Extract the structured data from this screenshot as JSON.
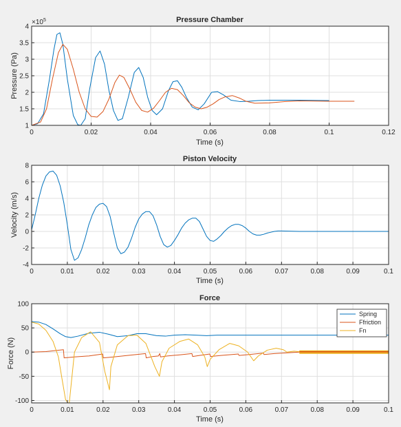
{
  "colors": {
    "blue": "#0072bd",
    "orange": "#d95319",
    "yellow": "#edb120"
  },
  "chart_data": [
    {
      "type": "line",
      "title": "Pressure Chamber",
      "xlabel": "Time (s)",
      "ylabel": "Pressure (Pa)",
      "exponent_label": "×10",
      "exponent_power": "5",
      "xlim": [
        0,
        0.12
      ],
      "ylim": [
        1,
        4
      ],
      "xticks": [
        "0",
        "0.02",
        "0.04",
        "0.06",
        "0.08",
        "0.1",
        "0.12"
      ],
      "yticks": [
        "1",
        "1.5",
        "2",
        "2.5",
        "3",
        "3.5",
        "4"
      ],
      "grid": true,
      "series": [
        {
          "color": "#0072bd",
          "x": [
            0,
            0.002,
            0.004,
            0.006,
            0.0075,
            0.0085,
            0.0095,
            0.0105,
            0.012,
            0.014,
            0.0155,
            0.0165,
            0.018,
            0.0195,
            0.0215,
            0.023,
            0.0245,
            0.026,
            0.0275,
            0.029,
            0.0305,
            0.0325,
            0.0345,
            0.036,
            0.0375,
            0.039,
            0.0405,
            0.042,
            0.044,
            0.046,
            0.0475,
            0.049,
            0.0505,
            0.052,
            0.054,
            0.056,
            0.058,
            0.0605,
            0.0625,
            0.0645,
            0.067,
            0.07,
            0.073,
            0.076,
            0.08,
            0.09,
            0.1
          ],
          "y": [
            1,
            1.05,
            1.35,
            2.4,
            3.3,
            3.75,
            3.8,
            3.45,
            2.4,
            1.3,
            1.02,
            1.0,
            1.2,
            2.1,
            3.05,
            3.25,
            2.85,
            2.05,
            1.45,
            1.15,
            1.2,
            1.85,
            2.6,
            2.75,
            2.45,
            1.85,
            1.45,
            1.32,
            1.5,
            2.05,
            2.32,
            2.35,
            2.15,
            1.85,
            1.55,
            1.47,
            1.65,
            2.0,
            2.02,
            1.92,
            1.76,
            1.72,
            1.73,
            1.75,
            1.76,
            1.76,
            1.75
          ]
        },
        {
          "color": "#d95319",
          "x": [
            0,
            0.003,
            0.005,
            0.007,
            0.009,
            0.0105,
            0.012,
            0.014,
            0.016,
            0.018,
            0.02,
            0.022,
            0.024,
            0.026,
            0.028,
            0.0295,
            0.031,
            0.033,
            0.035,
            0.037,
            0.039,
            0.041,
            0.043,
            0.045,
            0.047,
            0.049,
            0.051,
            0.053,
            0.055,
            0.057,
            0.059,
            0.061,
            0.063,
            0.065,
            0.0675,
            0.07,
            0.072,
            0.075,
            0.08,
            0.085,
            0.09,
            0.1,
            0.1085
          ],
          "y": [
            1,
            1.1,
            1.5,
            2.4,
            3.2,
            3.45,
            3.3,
            2.7,
            2.0,
            1.5,
            1.27,
            1.25,
            1.42,
            1.8,
            2.3,
            2.52,
            2.45,
            2.1,
            1.7,
            1.45,
            1.4,
            1.52,
            1.75,
            2.0,
            2.12,
            2.08,
            1.9,
            1.68,
            1.55,
            1.5,
            1.55,
            1.65,
            1.78,
            1.86,
            1.9,
            1.82,
            1.73,
            1.67,
            1.68,
            1.72,
            1.74,
            1.73,
            1.73
          ]
        }
      ]
    },
    {
      "type": "line",
      "title": "Piston Velocity",
      "xlabel": "Time (s)",
      "ylabel": "Velocity (m/s)",
      "xlim": [
        0,
        0.1
      ],
      "ylim": [
        -4,
        8
      ],
      "xticks": [
        "0",
        "0.01",
        "0.02",
        "0.03",
        "0.04",
        "0.05",
        "0.06",
        "0.07",
        "0.08",
        "0.09",
        "0.1"
      ],
      "yticks": [
        "-4",
        "-2",
        "0",
        "2",
        "4",
        "6",
        "8"
      ],
      "grid": true,
      "series": [
        {
          "color": "#0072bd",
          "x": [
            0,
            0.001,
            0.002,
            0.003,
            0.004,
            0.005,
            0.006,
            0.007,
            0.008,
            0.009,
            0.01,
            0.011,
            0.012,
            0.013,
            0.014,
            0.015,
            0.016,
            0.017,
            0.018,
            0.019,
            0.02,
            0.021,
            0.022,
            0.023,
            0.024,
            0.025,
            0.026,
            0.027,
            0.028,
            0.029,
            0.03,
            0.031,
            0.032,
            0.033,
            0.034,
            0.035,
            0.036,
            0.037,
            0.038,
            0.039,
            0.04,
            0.041,
            0.042,
            0.043,
            0.044,
            0.045,
            0.046,
            0.047,
            0.048,
            0.049,
            0.05,
            0.051,
            0.052,
            0.053,
            0.054,
            0.055,
            0.056,
            0.057,
            0.058,
            0.059,
            0.06,
            0.061,
            0.062,
            0.063,
            0.064,
            0.065,
            0.066,
            0.067,
            0.068,
            0.069,
            0.07,
            0.075,
            0.08,
            0.09,
            0.1
          ],
          "y": [
            0.2,
            2.0,
            4.0,
            5.6,
            6.7,
            7.2,
            7.3,
            6.8,
            5.5,
            3.5,
            0.8,
            -2.2,
            -3.5,
            -3.2,
            -2.2,
            -0.8,
            0.8,
            2.0,
            2.9,
            3.3,
            3.4,
            3.0,
            1.8,
            -0.2,
            -2.0,
            -2.7,
            -2.5,
            -1.9,
            -0.8,
            0.5,
            1.5,
            2.1,
            2.4,
            2.4,
            1.9,
            0.8,
            -0.6,
            -1.6,
            -1.9,
            -1.7,
            -1.1,
            -0.4,
            0.4,
            1.0,
            1.4,
            1.6,
            1.6,
            1.2,
            0.3,
            -0.6,
            -1.1,
            -1.2,
            -0.9,
            -0.5,
            0.0,
            0.4,
            0.7,
            0.85,
            0.85,
            0.7,
            0.4,
            0.0,
            -0.3,
            -0.45,
            -0.45,
            -0.35,
            -0.2,
            -0.1,
            0.0,
            0.05,
            0.05,
            0.0,
            0.0,
            0.0,
            0.0
          ]
        }
      ]
    },
    {
      "type": "line",
      "title": "Force",
      "xlabel": "Time (s)",
      "ylabel": "Force (N)",
      "xlim": [
        0,
        0.1
      ],
      "ylim": [
        -105,
        100
      ],
      "xticks": [
        "0",
        "0.01",
        "0.02",
        "0.03",
        "0.04",
        "0.05",
        "0.06",
        "0.07",
        "0.08",
        "0.09",
        "0.1"
      ],
      "yticks": [
        "-100",
        "-50",
        "0",
        "50",
        "100"
      ],
      "grid": true,
      "legend": {
        "position": "top-right",
        "entries": [
          "Spring",
          "Ffriction",
          "Fn"
        ]
      },
      "series": [
        {
          "name": "Spring",
          "color": "#0072bd",
          "x": [
            0,
            0.002,
            0.004,
            0.006,
            0.008,
            0.0095,
            0.011,
            0.013,
            0.016,
            0.019,
            0.0215,
            0.024,
            0.027,
            0.0295,
            0.032,
            0.035,
            0.0375,
            0.04,
            0.043,
            0.046,
            0.049,
            0.052,
            0.056,
            0.06,
            0.065,
            0.07,
            0.08,
            0.09,
            0.1
          ],
          "y": [
            63,
            62,
            57,
            48,
            38,
            32,
            30,
            33,
            39,
            41,
            37,
            32,
            34,
            38,
            38,
            34,
            33,
            35,
            36,
            35,
            34,
            35,
            35,
            35,
            35,
            35,
            35,
            35,
            35
          ]
        },
        {
          "name": "Ffriction",
          "color": "#d95319",
          "x": [
            0,
            0.004,
            0.0089,
            0.0091,
            0.012,
            0.016,
            0.0199,
            0.0201,
            0.023,
            0.028,
            0.0319,
            0.0321,
            0.034,
            0.0355,
            0.0359,
            0.0361,
            0.038,
            0.041,
            0.0449,
            0.0451,
            0.047,
            0.0499,
            0.0501,
            0.053,
            0.0579,
            0.0581,
            0.061,
            0.0649,
            0.0651,
            0.068,
            0.075,
            0.1
          ],
          "y": [
            0,
            1,
            5,
            -12,
            -10,
            -8,
            -4,
            -12,
            -10,
            -6,
            -3,
            -12,
            -9,
            -8,
            -3,
            -10,
            -8,
            -6,
            -3,
            -9,
            -7,
            -4,
            -9,
            -7,
            -4,
            -7,
            -5,
            -2,
            -5,
            -3,
            0,
            0
          ]
        },
        {
          "name": "Fn",
          "color": "#edb120",
          "x": [
            0,
            0.002,
            0.004,
            0.006,
            0.0075,
            0.0085,
            0.0095,
            0.0105,
            0.012,
            0.014,
            0.0165,
            0.019,
            0.0205,
            0.0218,
            0.0222,
            0.024,
            0.027,
            0.0295,
            0.032,
            0.0345,
            0.0358,
            0.0365,
            0.0385,
            0.0415,
            0.044,
            0.0465,
            0.0485,
            0.0492,
            0.05,
            0.0525,
            0.0555,
            0.058,
            0.0605,
            0.0622,
            0.0635,
            0.066,
            0.0685,
            0.0705,
            0.0715,
            0.0735,
            0.076,
            0.1
          ],
          "y": [
            62,
            58,
            45,
            22,
            -10,
            -55,
            -98,
            -108,
            0,
            30,
            42,
            20,
            -40,
            -78,
            -30,
            15,
            34,
            35,
            18,
            -30,
            -50,
            -20,
            8,
            22,
            27,
            15,
            -10,
            -30,
            -15,
            5,
            18,
            13,
            0,
            -18,
            -8,
            4,
            8,
            5,
            0,
            2,
            0,
            0
          ]
        }
      ]
    }
  ]
}
